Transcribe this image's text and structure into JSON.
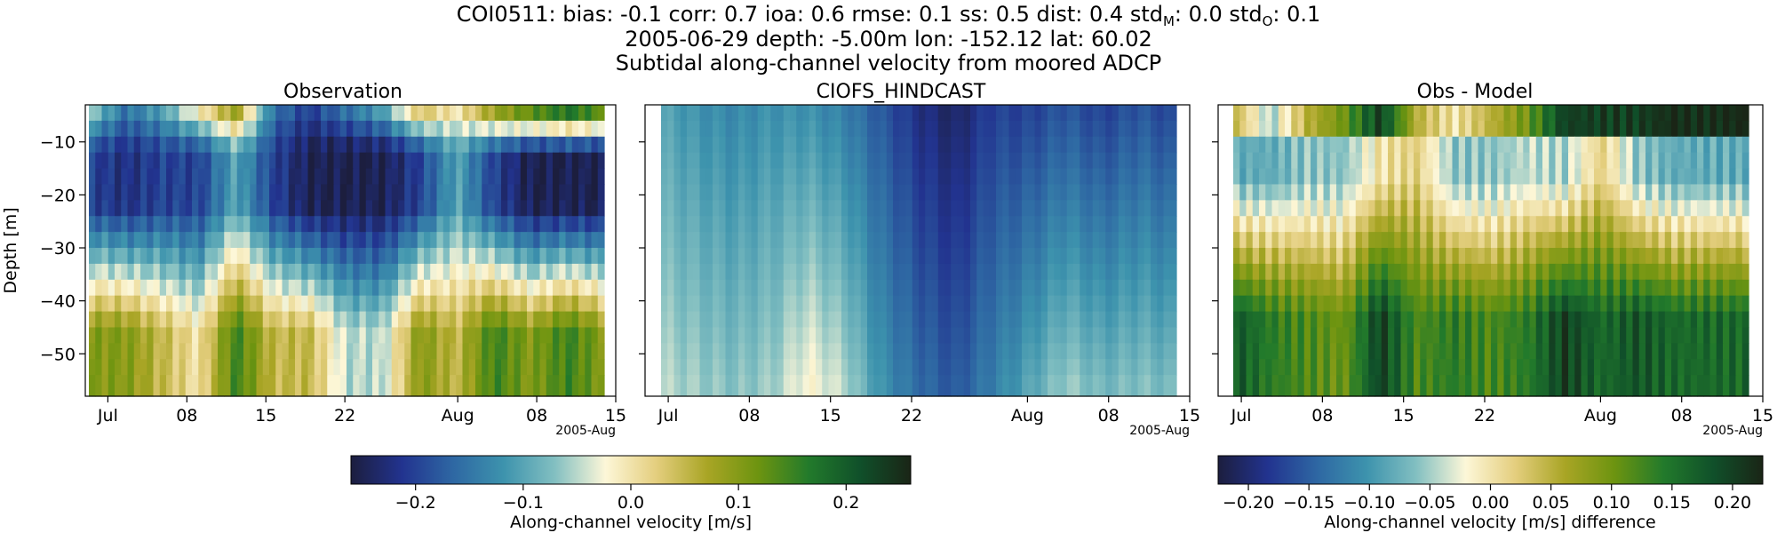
{
  "title": {
    "line1_prefix": "COI0511: bias: -0.1  corr: 0.7  ioa: 0.6  rmse: 0.1  ss: 0.5  dist: 0.4  std",
    "std_m_sub": "M",
    "std_m_value": ": 0.0  std",
    "std_o_sub": "O",
    "std_o_value": ": 0.1",
    "line2": "2005-06-29 depth: -5.00m lon: -152.12 lat: 60.02",
    "line3": "Subtidal along-channel velocity from moored ADCP"
  },
  "colors": {
    "colormap_delta": [
      "#1c1e3e",
      "#22338f",
      "#2e67a3",
      "#3d93ad",
      "#82bfc1",
      "#fdf7d8",
      "#e4ce7e",
      "#a9a525",
      "#6d9410",
      "#227a2b",
      "#10502a",
      "#1a2516"
    ]
  },
  "chart_data": [
    {
      "type": "heatmap",
      "title": "Observation",
      "ylabel": "Depth [m]",
      "xlabel": "",
      "ylim": [
        -58,
        -3
      ],
      "yticks": [
        -10,
        -20,
        -30,
        -40,
        -50
      ],
      "ytick_labels": [
        "−10",
        "−20",
        "−30",
        "−40",
        "−50"
      ],
      "xlim": [
        "2005-06-29",
        "2005-08-15"
      ],
      "xticks": [
        "2005-07-01",
        "2005-07-08",
        "2005-07-15",
        "2005-07-22",
        "2005-08-01",
        "2005-08-08",
        "2005-08-15"
      ],
      "xtick_labels": [
        "Jul",
        "08",
        "15",
        "22",
        "Aug",
        "08",
        "15"
      ],
      "x_offset_label": "2005-Aug",
      "depth_bins": [
        -4.5,
        -7.5,
        -10.5,
        -13.5,
        -16.5,
        -19.5,
        -22.5,
        -25.5,
        -28.5,
        -31.5,
        -34.5,
        -37.5,
        -40.5,
        -43.5,
        -46.5,
        -49.5,
        -52.5,
        -55.5
      ],
      "times": [
        "2005-07-01",
        "2005-07-05",
        "2005-07-09",
        "2005-07-12",
        "2005-07-15",
        "2005-07-17",
        "2005-07-20",
        "2005-07-23",
        "2005-07-26",
        "2005-07-29",
        "2005-08-01",
        "2005-08-04",
        "2005-08-08",
        "2005-08-11",
        "2005-08-14"
      ],
      "values_surface": [
        -0.05,
        -0.15,
        -0.1,
        0.0,
        0.1,
        -0.15,
        -0.2,
        -0.15,
        -0.1,
        0.05,
        0.0,
        0.1,
        0.15,
        0.2,
        0.15
      ],
      "values_mid": [
        -0.2,
        -0.22,
        -0.2,
        -0.2,
        -0.1,
        -0.2,
        -0.25,
        -0.25,
        -0.25,
        -0.2,
        -0.1,
        -0.2,
        -0.25,
        -0.25,
        -0.25
      ],
      "values_deep": [
        0.1,
        0.1,
        0.05,
        0.0,
        0.15,
        0.05,
        0.05,
        -0.05,
        -0.05,
        0.1,
        0.05,
        0.15,
        0.1,
        0.15,
        0.1
      ],
      "colorbar": {
        "label": "Along-channel velocity [m/s]",
        "range": [
          -0.26,
          0.26
        ],
        "ticks": [
          "−0.2",
          "−0.1",
          "0.0",
          "0.1",
          "0.2"
        ],
        "tick_values": [
          -0.2,
          -0.1,
          0.0,
          0.1,
          0.2
        ]
      }
    },
    {
      "type": "heatmap",
      "title": "CIOFS_HINDCAST",
      "xlim": [
        "2005-06-29",
        "2005-08-15"
      ],
      "xtick_labels": [
        "Jul",
        "08",
        "15",
        "22",
        "Aug",
        "08",
        "15"
      ],
      "x_offset_label": "2005-Aug",
      "times": [
        "2005-07-01",
        "2005-07-05",
        "2005-07-09",
        "2005-07-12",
        "2005-07-15",
        "2005-07-17",
        "2005-07-20",
        "2005-07-23",
        "2005-07-26",
        "2005-07-29",
        "2005-08-01",
        "2005-08-04",
        "2005-08-08",
        "2005-08-11",
        "2005-08-14"
      ],
      "values_surface": [
        -0.1,
        -0.12,
        -0.13,
        -0.12,
        -0.12,
        -0.14,
        -0.18,
        -0.22,
        -0.24,
        -0.2,
        -0.2,
        -0.18,
        -0.2,
        -0.18,
        -0.2
      ],
      "values_deep": [
        -0.05,
        -0.06,
        -0.07,
        -0.06,
        -0.02,
        -0.05,
        -0.12,
        -0.16,
        -0.18,
        -0.14,
        -0.1,
        -0.06,
        -0.08,
        -0.07,
        -0.08
      ]
    },
    {
      "type": "heatmap",
      "title": "Obs - Model",
      "xlim": [
        "2005-06-29",
        "2005-08-15"
      ],
      "xtick_labels": [
        "Jul",
        "08",
        "15",
        "22",
        "Aug",
        "08",
        "15"
      ],
      "x_offset_label": "2005-Aug",
      "times": [
        "2005-07-01",
        "2005-07-05",
        "2005-07-09",
        "2005-07-12",
        "2005-07-15",
        "2005-07-17",
        "2005-07-20",
        "2005-07-23",
        "2005-07-26",
        "2005-07-29",
        "2005-08-01",
        "2005-08-04",
        "2005-08-08",
        "2005-08-11",
        "2005-08-14"
      ],
      "values_surface": [
        0.05,
        -0.05,
        0.05,
        0.1,
        0.2,
        0.05,
        0.0,
        0.05,
        0.1,
        0.2,
        0.2,
        0.2,
        0.22,
        0.22,
        0.22
      ],
      "values_mid": [
        -0.08,
        -0.08,
        -0.06,
        -0.06,
        0.0,
        0.02,
        -0.06,
        -0.06,
        -0.04,
        -0.05,
        0.02,
        -0.06,
        -0.08,
        -0.08,
        -0.08
      ],
      "values_deep": [
        0.18,
        0.14,
        0.12,
        0.1,
        0.2,
        0.12,
        0.14,
        0.12,
        0.14,
        0.2,
        0.16,
        0.18,
        0.16,
        0.16,
        0.16
      ],
      "colorbar": {
        "label": "Along-channel velocity [m/s] difference",
        "range": [
          -0.225,
          0.225
        ],
        "ticks": [
          "−0.20",
          "−0.15",
          "−0.10",
          "−0.05",
          "0.00",
          "0.05",
          "0.10",
          "0.15",
          "0.20"
        ],
        "tick_values": [
          -0.2,
          -0.15,
          -0.1,
          -0.05,
          0.0,
          0.05,
          0.1,
          0.15,
          0.2
        ]
      }
    }
  ]
}
